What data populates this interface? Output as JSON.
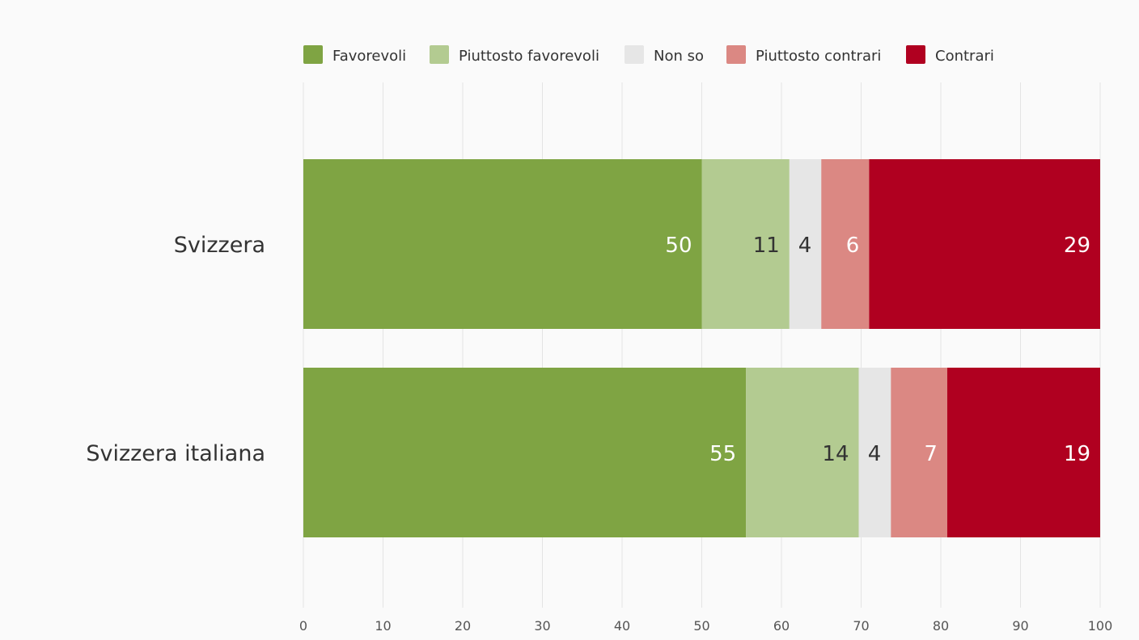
{
  "chart_data": {
    "type": "bar",
    "orientation": "horizontal",
    "stacked": true,
    "categories": [
      "Svizzera",
      "Svizzera italiana"
    ],
    "series": [
      {
        "name": "Favorevoli",
        "values": [
          50,
          55
        ],
        "color": "#7fa443",
        "label_color": "#ffffff"
      },
      {
        "name": "Piuttosto favorevoli",
        "values": [
          11,
          14
        ],
        "color": "#b3cb91",
        "label_color": "#333333"
      },
      {
        "name": "Non so",
        "values": [
          4,
          4
        ],
        "color": "#e6e6e6",
        "label_color": "#333333"
      },
      {
        "name": "Piuttosto contrari",
        "values": [
          6,
          7
        ],
        "color": "#db8883",
        "label_color": "#ffffff"
      },
      {
        "name": "Contrari",
        "values": [
          29,
          19
        ],
        "color": "#b00020",
        "label_color": "#ffffff"
      }
    ],
    "xlim": [
      0,
      100
    ],
    "xticks": [
      0,
      10,
      20,
      30,
      40,
      50,
      60,
      70,
      80,
      90,
      100
    ],
    "grid": true,
    "legend_position": "top"
  }
}
